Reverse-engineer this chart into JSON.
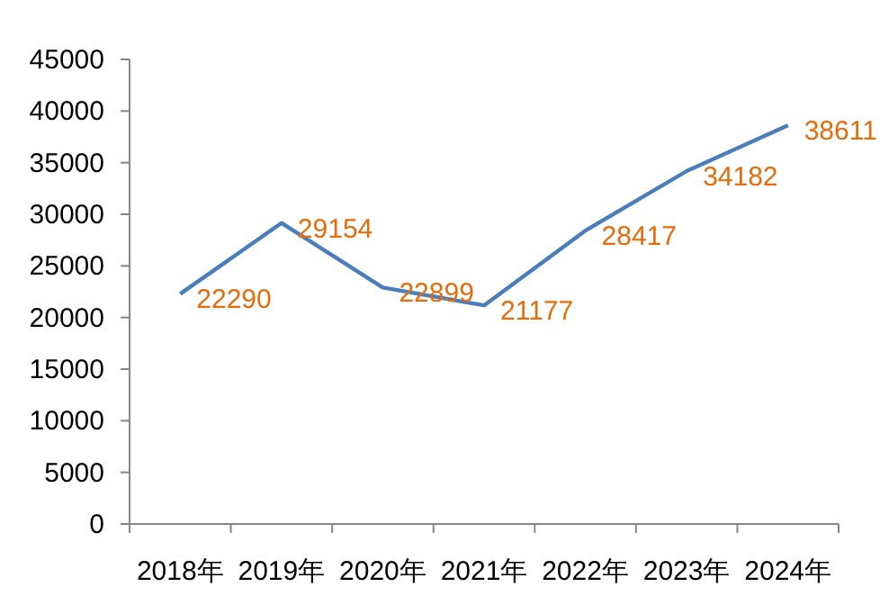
{
  "chart_data": {
    "type": "line",
    "categories": [
      "2018年",
      "2019年",
      "2020年",
      "2021年",
      "2022年",
      "2023年",
      "2024年"
    ],
    "values": [
      22290,
      29154,
      22899,
      21177,
      28417,
      34182,
      38611
    ],
    "color": "#4a7ebb",
    "ylim": [
      0,
      45000
    ],
    "yticks": [
      0,
      5000,
      10000,
      15000,
      20000,
      25000,
      30000,
      35000,
      40000,
      45000
    ],
    "data_labels": true,
    "grid": false,
    "marker": "none"
  }
}
